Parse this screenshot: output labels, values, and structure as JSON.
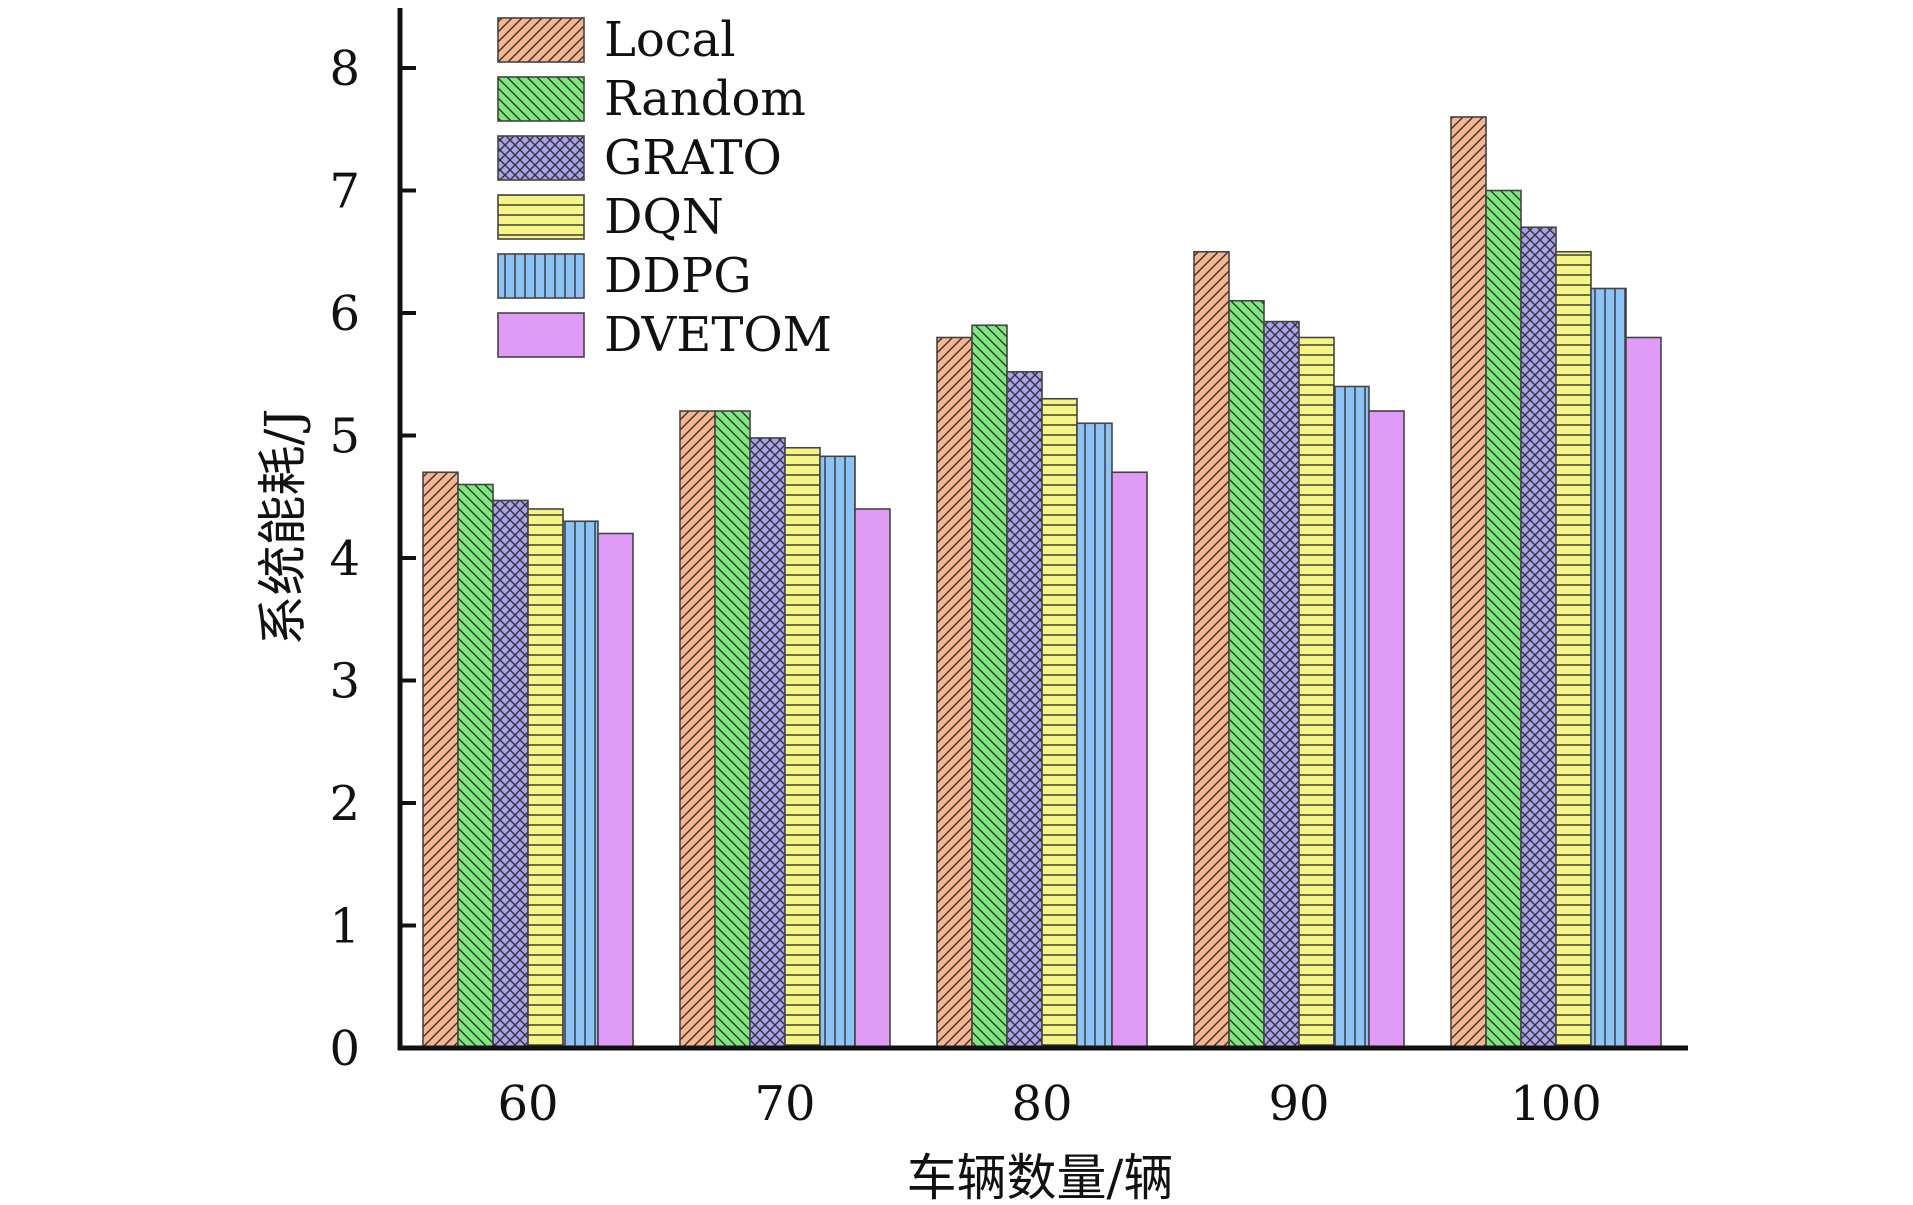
{
  "chart_data": {
    "type": "bar",
    "title": "",
    "xlabel": "车辆数量/辆",
    "ylabel": "系统能耗/J",
    "categories": [
      "60",
      "70",
      "80",
      "90",
      "100"
    ],
    "ylim": [
      0,
      8.5
    ],
    "yticks": [
      "0",
      "1",
      "2",
      "3",
      "4",
      "5",
      "6",
      "7",
      "8"
    ],
    "legend_position": "top-left",
    "grid": false,
    "series": [
      {
        "name": "Local",
        "values": [
          4.7,
          5.2,
          5.8,
          6.5,
          7.6
        ],
        "color": "#f6b48f",
        "pattern": "diagonal-slash"
      },
      {
        "name": "Random",
        "values": [
          4.6,
          5.2,
          5.9,
          6.1,
          7.0
        ],
        "color": "#7ee87e",
        "pattern": "diagonal-backslash"
      },
      {
        "name": "GRATO",
        "values": [
          4.47,
          4.98,
          5.52,
          5.93,
          6.7
        ],
        "color": "#a9a3ee",
        "pattern": "crosshatch"
      },
      {
        "name": "DQN",
        "values": [
          4.4,
          4.9,
          5.3,
          5.8,
          6.5
        ],
        "color": "#f5f585",
        "pattern": "horizontal"
      },
      {
        "name": "DDPG",
        "values": [
          4.3,
          4.83,
          5.1,
          5.4,
          6.2
        ],
        "color": "#8ec4f5",
        "pattern": "vertical"
      },
      {
        "name": "DVETOM",
        "values": [
          4.2,
          4.4,
          4.7,
          5.2,
          5.8
        ],
        "color": "#df9bf5",
        "pattern": "solid"
      }
    ]
  }
}
